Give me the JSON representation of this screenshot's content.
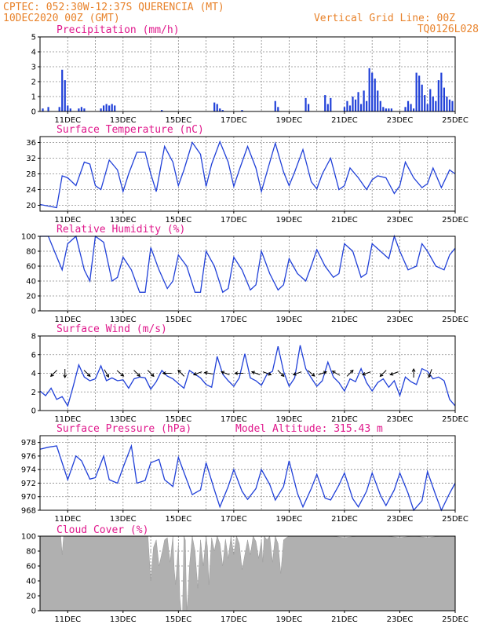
{
  "header": {
    "line1_left": "CPTEC:    052:30W-12:37S   QUERENCIA (MT)",
    "line2_left": "10DEC2020 00Z (GMT)",
    "line1_right": "Vertical Grid Line: 00Z",
    "line2_right": "TQ0126L028"
  },
  "colors": {
    "header": "#e8822a",
    "title": "#e0188c",
    "series": "#2040d8",
    "cloud": "#b0b0b0"
  },
  "x_tick_labels": [
    "11DEC",
    "13DEC",
    "15DEC",
    "17DEC",
    "19DEC",
    "21DEC",
    "23DEC",
    "25DEC"
  ],
  "chart_data": [
    {
      "id": "precipitation",
      "type": "bar",
      "title": "Precipitation (mm/h)",
      "x_days": [
        10.1,
        10.3,
        10.7,
        10.8,
        10.9,
        11.0,
        11.1,
        11.4,
        11.5,
        11.6,
        12.2,
        12.3,
        12.4,
        12.5,
        12.6,
        12.7,
        14.4,
        16.3,
        16.4,
        16.5,
        16.6,
        17.3,
        18.5,
        18.6,
        19.6,
        19.7,
        20.3,
        20.4,
        20.5,
        21.0,
        21.1,
        21.2,
        21.3,
        21.4,
        21.5,
        21.6,
        21.7,
        21.8,
        21.9,
        22.0,
        22.1,
        22.2,
        22.3,
        22.4,
        22.5,
        22.6,
        22.7,
        23.2,
        23.3,
        23.4,
        23.5,
        23.6,
        23.7,
        23.8,
        23.9,
        24.0,
        24.1,
        24.2,
        24.3,
        24.4,
        24.5,
        24.6,
        24.7,
        24.8,
        24.9
      ],
      "values": [
        0.2,
        0.3,
        0.3,
        2.8,
        2.1,
        0.4,
        0.2,
        0.2,
        0.3,
        0.2,
        0.2,
        0.4,
        0.5,
        0.4,
        0.5,
        0.4,
        0.1,
        0.6,
        0.5,
        0.2,
        0.1,
        0.1,
        0.7,
        0.3,
        0.9,
        0.5,
        1.1,
        0.5,
        0.9,
        0.3,
        0.7,
        0.4,
        1.0,
        0.8,
        1.3,
        0.5,
        1.4,
        0.7,
        2.9,
        2.6,
        2.2,
        1.4,
        0.7,
        0.3,
        0.2,
        0.2,
        0.2,
        0.3,
        0.7,
        0.5,
        0.2,
        2.6,
        2.4,
        1.8,
        1.1,
        0.5,
        1.5,
        1.0,
        0.7,
        2.1,
        2.6,
        1.6,
        1.0,
        0.8,
        0.7
      ],
      "ylim": [
        0,
        5
      ],
      "yticks": [
        0,
        1,
        2,
        3,
        4,
        5
      ]
    },
    {
      "id": "temperature",
      "type": "line",
      "title": "Surface Temperature (nC)",
      "x_days": [
        10.0,
        10.3,
        10.6,
        10.8,
        11.0,
        11.3,
        11.6,
        11.8,
        12.0,
        12.2,
        12.5,
        12.8,
        13.0,
        13.2,
        13.5,
        13.8,
        14.0,
        14.2,
        14.5,
        14.8,
        15.0,
        15.2,
        15.5,
        15.8,
        16.0,
        16.2,
        16.5,
        16.8,
        17.0,
        17.2,
        17.5,
        17.8,
        18.0,
        18.2,
        18.5,
        18.8,
        19.0,
        19.2,
        19.5,
        19.8,
        20.0,
        20.2,
        20.5,
        20.8,
        21.0,
        21.2,
        21.5,
        21.8,
        22.0,
        22.2,
        22.5,
        22.8,
        23.0,
        23.2,
        23.5,
        23.8,
        24.0,
        24.2,
        24.5,
        24.8,
        25.0
      ],
      "values": [
        20.2,
        19.8,
        19.4,
        27.5,
        27.0,
        25.0,
        31.0,
        30.5,
        25.0,
        24.0,
        31.5,
        29.0,
        23.5,
        28.0,
        33.5,
        33.5,
        28.0,
        23.5,
        35.0,
        31.0,
        25.0,
        29.0,
        36.0,
        33.0,
        24.8,
        30.5,
        36.2,
        31.0,
        24.8,
        29.0,
        35.0,
        29.5,
        23.5,
        28.5,
        35.8,
        28.5,
        25.0,
        28.5,
        34.2,
        26.0,
        24.2,
        28.0,
        32.0,
        24.0,
        25.0,
        29.5,
        27.0,
        24.0,
        26.5,
        27.5,
        27.0,
        23.0,
        25.0,
        31.0,
        27.0,
        24.5,
        25.5,
        29.5,
        24.5,
        29.0,
        28.0
      ],
      "ylim": [
        18.5,
        37.5
      ],
      "yticks": [
        20,
        24,
        28,
        32,
        36
      ]
    },
    {
      "id": "humidity",
      "type": "line",
      "title": "Relative Humidity (%)",
      "x_days": [
        10.0,
        10.3,
        10.5,
        10.8,
        11.0,
        11.3,
        11.6,
        11.8,
        12.0,
        12.3,
        12.6,
        12.8,
        13.0,
        13.3,
        13.6,
        13.8,
        14.0,
        14.3,
        14.6,
        14.8,
        15.0,
        15.3,
        15.6,
        15.8,
        16.0,
        16.3,
        16.6,
        16.8,
        17.0,
        17.3,
        17.6,
        17.8,
        18.0,
        18.3,
        18.6,
        18.8,
        19.0,
        19.3,
        19.6,
        19.8,
        20.0,
        20.3,
        20.6,
        20.8,
        21.0,
        21.3,
        21.6,
        21.8,
        22.0,
        22.3,
        22.6,
        22.8,
        23.0,
        23.3,
        23.6,
        23.8,
        24.0,
        24.3,
        24.6,
        24.8,
        25.0
      ],
      "values": [
        100,
        100,
        82,
        55,
        90,
        100,
        55,
        40,
        100,
        92,
        40,
        45,
        72,
        55,
        25,
        25,
        85,
        55,
        30,
        40,
        75,
        60,
        25,
        25,
        80,
        60,
        25,
        30,
        72,
        55,
        28,
        35,
        80,
        50,
        28,
        35,
        70,
        50,
        40,
        60,
        82,
        60,
        45,
        50,
        90,
        80,
        45,
        50,
        90,
        80,
        70,
        100,
        80,
        55,
        60,
        90,
        80,
        60,
        55,
        75,
        84
      ],
      "ylim": [
        0,
        100
      ],
      "yticks": [
        0,
        20,
        40,
        60,
        80,
        100
      ]
    },
    {
      "id": "wind",
      "type": "line",
      "title": "Surface Wind (m/s)",
      "x_days": [
        10.0,
        10.2,
        10.4,
        10.6,
        10.8,
        11.0,
        11.2,
        11.4,
        11.6,
        11.8,
        12.0,
        12.2,
        12.4,
        12.6,
        12.8,
        13.0,
        13.2,
        13.4,
        13.6,
        13.8,
        14.0,
        14.2,
        14.4,
        14.6,
        14.8,
        15.0,
        15.2,
        15.4,
        15.6,
        15.8,
        16.0,
        16.2,
        16.4,
        16.6,
        16.8,
        17.0,
        17.2,
        17.4,
        17.6,
        17.8,
        18.0,
        18.2,
        18.4,
        18.6,
        18.8,
        19.0,
        19.2,
        19.4,
        19.6,
        19.8,
        20.0,
        20.2,
        20.4,
        20.6,
        20.8,
        21.0,
        21.2,
        21.4,
        21.6,
        21.8,
        22.0,
        22.2,
        22.4,
        22.6,
        22.8,
        23.0,
        23.2,
        23.4,
        23.6,
        23.8,
        24.0,
        24.2,
        24.4,
        24.6,
        24.8,
        25.0
      ],
      "values": [
        2.1,
        1.6,
        2.4,
        1.2,
        1.5,
        0.5,
        2.6,
        4.9,
        3.6,
        3.2,
        3.4,
        4.8,
        3.2,
        3.5,
        3.2,
        3.3,
        2.4,
        3.4,
        3.6,
        3.5,
        2.3,
        3.1,
        4.3,
        3.7,
        3.4,
        2.9,
        2.4,
        4.3,
        3.9,
        3.5,
        2.8,
        2.5,
        5.8,
        3.9,
        3.2,
        2.6,
        3.5,
        6.1,
        3.5,
        3.2,
        2.7,
        3.9,
        4.2,
        6.9,
        4.2,
        2.6,
        3.5,
        7.0,
        4.5,
        3.5,
        2.6,
        3.2,
        5.2,
        3.6,
        3.0,
        2.1,
        3.4,
        3.1,
        4.5,
        3.0,
        2.1,
        3.0,
        3.4,
        2.5,
        3.2,
        1.6,
        3.6,
        3.1,
        2.8,
        4.5,
        4.2,
        3.4,
        3.6,
        3.2,
        1.2,
        0.5
      ],
      "ylim": [
        0,
        8
      ],
      "yticks": [
        0,
        2,
        4,
        6,
        8
      ],
      "arrows": [
        {
          "day": 10.5,
          "dir_deg": 225
        },
        {
          "day": 10.9,
          "dir_deg": 270
        },
        {
          "day": 11.7,
          "dir_deg": 315
        },
        {
          "day": 12.4,
          "dir_deg": 300
        },
        {
          "day": 12.9,
          "dir_deg": 320
        },
        {
          "day": 13.5,
          "dir_deg": 315
        },
        {
          "day": 14.0,
          "dir_deg": 315
        },
        {
          "day": 14.6,
          "dir_deg": 180
        },
        {
          "day": 15.1,
          "dir_deg": 135
        },
        {
          "day": 15.7,
          "dir_deg": 200
        },
        {
          "day": 16.1,
          "dir_deg": 170
        },
        {
          "day": 16.7,
          "dir_deg": 160
        },
        {
          "day": 17.2,
          "dir_deg": 180
        },
        {
          "day": 17.8,
          "dir_deg": 160
        },
        {
          "day": 18.2,
          "dir_deg": 340
        },
        {
          "day": 18.7,
          "dir_deg": 315
        },
        {
          "day": 19.3,
          "dir_deg": 200
        },
        {
          "day": 19.8,
          "dir_deg": 320
        },
        {
          "day": 20.2,
          "dir_deg": 20
        },
        {
          "day": 20.7,
          "dir_deg": 150
        },
        {
          "day": 21.2,
          "dir_deg": 45
        },
        {
          "day": 21.8,
          "dir_deg": 200
        },
        {
          "day": 22.4,
          "dir_deg": 225
        },
        {
          "day": 22.8,
          "dir_deg": 200
        },
        {
          "day": 23.5,
          "dir_deg": 90
        },
        {
          "day": 24.1,
          "dir_deg": 250
        }
      ]
    },
    {
      "id": "pressure",
      "type": "line",
      "title": "Surface Pressure (hPa)",
      "subtitle": "Model Altitude: 315.43 m",
      "x_days": [
        10.0,
        10.3,
        10.6,
        10.8,
        11.0,
        11.3,
        11.5,
        11.8,
        12.0,
        12.3,
        12.5,
        12.8,
        13.0,
        13.3,
        13.5,
        13.8,
        14.0,
        14.3,
        14.5,
        14.8,
        15.0,
        15.3,
        15.5,
        15.8,
        16.0,
        16.3,
        16.5,
        16.8,
        17.0,
        17.3,
        17.5,
        17.8,
        18.0,
        18.3,
        18.5,
        18.8,
        19.0,
        19.3,
        19.5,
        19.8,
        20.0,
        20.3,
        20.5,
        20.8,
        21.0,
        21.3,
        21.5,
        21.8,
        22.0,
        22.3,
        22.5,
        22.8,
        23.0,
        23.3,
        23.5,
        23.8,
        24.0,
        24.3,
        24.5,
        24.8,
        25.0
      ],
      "values": [
        977,
        977.3,
        977.5,
        975.0,
        972.5,
        976.0,
        975.3,
        972.6,
        972.8,
        976.0,
        972.5,
        972.0,
        974.3,
        977.5,
        972.0,
        972.4,
        975.0,
        975.5,
        972.5,
        971.5,
        975.8,
        972.5,
        970.3,
        971.0,
        975.0,
        971.0,
        968.5,
        971.5,
        974.0,
        970.8,
        969.6,
        971.2,
        974.0,
        971.8,
        969.5,
        971.5,
        975.3,
        970.5,
        968.5,
        971.2,
        973.3,
        969.8,
        969.5,
        971.7,
        973.5,
        969.7,
        968.5,
        970.8,
        973.5,
        970.2,
        968.7,
        971.0,
        973.5,
        970.5,
        968.0,
        969.4,
        973.7,
        970.2,
        968.0,
        970.5,
        972.0
      ],
      "ylim": [
        968,
        979
      ],
      "yticks": [
        968,
        970,
        972,
        974,
        976,
        978
      ]
    },
    {
      "id": "cloud",
      "type": "area",
      "title": "Cloud Cover (%)",
      "x_days": [
        10.0,
        10.5,
        10.75,
        10.8,
        10.85,
        11.0,
        11.5,
        12.0,
        12.5,
        13.0,
        13.5,
        13.9,
        14.0,
        14.1,
        14.2,
        14.3,
        14.45,
        14.5,
        14.6,
        14.7,
        14.8,
        14.85,
        14.9,
        15.0,
        15.05,
        15.1,
        15.15,
        15.2,
        15.25,
        15.3,
        15.35,
        15.4,
        15.5,
        15.6,
        15.7,
        15.8,
        15.9,
        16.0,
        16.05,
        16.1,
        16.2,
        16.3,
        16.4,
        16.5,
        16.6,
        16.7,
        16.8,
        16.9,
        17.0,
        17.1,
        17.2,
        17.3,
        17.5,
        17.6,
        17.7,
        17.8,
        17.9,
        18.0,
        18.05,
        18.1,
        18.2,
        18.3,
        18.4,
        18.5,
        18.6,
        18.7,
        18.8,
        18.9,
        19.0,
        19.5,
        20.0,
        20.5,
        21.0,
        21.5,
        22.0,
        22.5,
        23.0,
        23.5,
        24.0,
        24.5,
        25.0
      ],
      "values": [
        100,
        100,
        100,
        75,
        100,
        100,
        100,
        100,
        100,
        100,
        100,
        100,
        40,
        85,
        95,
        60,
        85,
        95,
        98,
        65,
        100,
        55,
        35,
        90,
        18,
        0,
        0,
        100,
        95,
        0,
        20,
        60,
        100,
        80,
        30,
        95,
        60,
        100,
        85,
        35,
        98,
        80,
        100,
        90,
        60,
        96,
        70,
        100,
        75,
        100,
        90,
        55,
        95,
        75,
        100,
        93,
        70,
        95,
        65,
        100,
        95,
        100,
        65,
        100,
        90,
        50,
        95,
        98,
        100,
        100,
        100,
        100,
        98,
        100,
        100,
        100,
        98,
        100,
        98,
        100,
        100
      ],
      "ylim": [
        0,
        100
      ],
      "yticks": [
        0,
        20,
        40,
        60,
        80,
        100
      ]
    }
  ]
}
